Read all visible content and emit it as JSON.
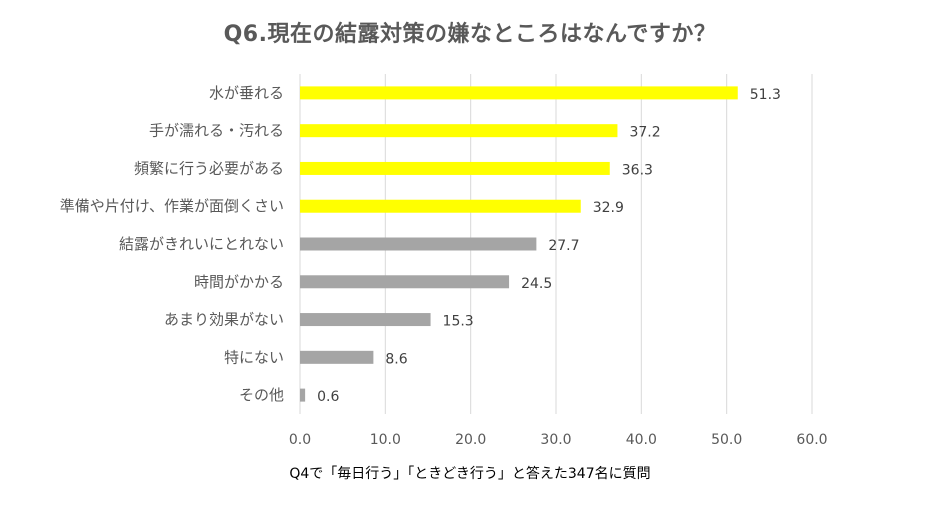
{
  "chart_data": {
    "type": "bar",
    "orientation": "horizontal",
    "title": "Q6.現在の結露対策の嫌なところはなんですか？",
    "xlabel": "Q4で「毎日行う」「ときどき行う」と答えた347名に質問",
    "ylabel": "",
    "categories": [
      "水が垂れる",
      "手が濡れる・汚れる",
      "頻繁に行う必要がある",
      "準備や片付け、作業が面倒くさい",
      "結露がきれいにとれない",
      "時間がかかる",
      "あまり効果がない",
      "特にない",
      "その他"
    ],
    "values": [
      51.3,
      37.2,
      36.3,
      32.9,
      27.7,
      24.5,
      15.3,
      8.6,
      0.6
    ],
    "value_labels": [
      "51.3",
      "37.2",
      "36.3",
      "32.9",
      "27.7",
      "24.5",
      "15.3",
      "8.6",
      "0.6"
    ],
    "xlim": [
      0,
      60
    ],
    "x_ticks": [
      0,
      10,
      20,
      30,
      40,
      50,
      60
    ],
    "x_tick_labels": [
      "0.0",
      "10.0",
      "20.0",
      "30.0",
      "40.0",
      "50.0",
      "60.0"
    ],
    "grid": true,
    "legend": "none",
    "highlight_count": 4,
    "colors": {
      "highlight": "#ffff00",
      "normal": "#a5a5a5",
      "grid": "#d9d9d9",
      "text": "#595959",
      "value_text": "#404040"
    }
  }
}
